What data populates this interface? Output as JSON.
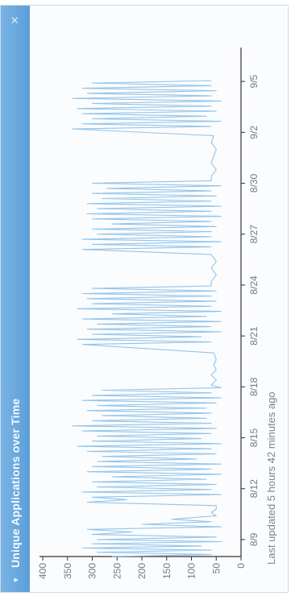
{
  "widget": {
    "title": "Unique Applications over Time",
    "collapse_icon": "chevron-down-icon",
    "close_icon": "close-icon",
    "footer": "Last updated 5 hours 42 minutes ago"
  },
  "colors": {
    "header": "#5b9fd9",
    "series": "#8cc1e8",
    "axis": "#333333",
    "tick_text": "#6f7a86"
  },
  "chart_data": {
    "type": "line",
    "title": "Unique Applications over Time",
    "xlabel": "",
    "ylabel": "",
    "grid": false,
    "ylim": [
      0,
      400
    ],
    "y_ticks": [
      0,
      50,
      100,
      150,
      200,
      250,
      300,
      350,
      400
    ],
    "x_tick_labels": [
      "8/9",
      "8/12",
      "8/15",
      "8/18",
      "8/21",
      "8/24",
      "8/27",
      "8/30",
      "9/2",
      "9/5"
    ],
    "x_range_days": [
      "8/8",
      "9/7"
    ],
    "series": [
      {
        "values": [
          [
            0,
            260
          ],
          [
            0.12,
            60
          ],
          [
            0.25,
            290
          ],
          [
            0.38,
            60
          ],
          [
            0.5,
            320
          ],
          [
            0.62,
            80
          ],
          [
            0.75,
            300
          ],
          [
            0.88,
            40
          ],
          [
            1.0,
            290
          ],
          [
            1.15,
            50
          ],
          [
            1.3,
            300
          ],
          [
            1.45,
            220
          ],
          [
            1.6,
            310
          ],
          [
            1.75,
            40
          ],
          [
            1.9,
            200
          ],
          [
            2.05,
            60
          ],
          [
            2.2,
            140
          ],
          [
            2.4,
            50
          ],
          [
            2.6,
            60
          ],
          [
            2.8,
            50
          ],
          [
            3.0,
            50
          ],
          [
            3.2,
            310
          ],
          [
            3.35,
            230
          ],
          [
            3.5,
            300
          ],
          [
            3.65,
            40
          ],
          [
            3.8,
            320
          ],
          [
            3.95,
            60
          ],
          [
            4.1,
            290
          ],
          [
            4.25,
            50
          ],
          [
            4.4,
            300
          ],
          [
            4.55,
            70
          ],
          [
            4.7,
            260
          ],
          [
            4.85,
            40
          ],
          [
            5.0,
            310
          ],
          [
            5.15,
            60
          ],
          [
            5.3,
            300
          ],
          [
            5.45,
            40
          ],
          [
            5.6,
            290
          ],
          [
            5.75,
            90
          ],
          [
            5.9,
            280
          ],
          [
            6.05,
            50
          ],
          [
            6.2,
            310
          ],
          [
            6.35,
            60
          ],
          [
            6.5,
            330
          ],
          [
            6.65,
            40
          ],
          [
            6.8,
            300
          ],
          [
            6.95,
            80
          ],
          [
            7.1,
            290
          ],
          [
            7.25,
            60
          ],
          [
            7.4,
            320
          ],
          [
            7.55,
            50
          ],
          [
            7.7,
            340
          ],
          [
            7.85,
            60
          ],
          [
            8.0,
            300
          ],
          [
            8.15,
            70
          ],
          [
            8.3,
            280
          ],
          [
            8.45,
            60
          ],
          [
            8.6,
            310
          ],
          [
            8.75,
            70
          ],
          [
            8.9,
            290
          ],
          [
            9.05,
            50
          ],
          [
            9.2,
            320
          ],
          [
            9.35,
            40
          ],
          [
            9.5,
            300
          ],
          [
            9.65,
            60
          ],
          [
            9.8,
            280
          ],
          [
            9.95,
            40
          ],
          [
            10.1,
            60
          ],
          [
            10.4,
            50
          ],
          [
            10.7,
            60
          ],
          [
            11.0,
            50
          ],
          [
            11.3,
            55
          ],
          [
            11.6,
            50
          ],
          [
            12.0,
            55
          ],
          [
            12.5,
            320
          ],
          [
            12.65,
            60
          ],
          [
            12.8,
            330
          ],
          [
            12.95,
            80
          ],
          [
            13.1,
            300
          ],
          [
            13.25,
            40
          ],
          [
            13.4,
            310
          ],
          [
            13.55,
            60
          ],
          [
            13.7,
            290
          ],
          [
            13.85,
            40
          ],
          [
            14.0,
            320
          ],
          [
            14.15,
            70
          ],
          [
            14.3,
            260
          ],
          [
            14.45,
            40
          ],
          [
            14.6,
            330
          ],
          [
            14.75,
            60
          ],
          [
            14.9,
            300
          ],
          [
            15.05,
            50
          ],
          [
            15.2,
            310
          ],
          [
            15.35,
            60
          ],
          [
            15.5,
            320
          ],
          [
            15.65,
            50
          ],
          [
            15.8,
            300
          ],
          [
            15.95,
            60
          ],
          [
            16.2,
            60
          ],
          [
            16.6,
            50
          ],
          [
            17.0,
            60
          ],
          [
            17.4,
            50
          ],
          [
            17.8,
            60
          ],
          [
            18.1,
            320
          ],
          [
            18.25,
            60
          ],
          [
            18.4,
            300
          ],
          [
            18.55,
            40
          ],
          [
            18.7,
            320
          ],
          [
            18.85,
            60
          ],
          [
            19.0,
            290
          ],
          [
            19.15,
            60
          ],
          [
            19.3,
            300
          ],
          [
            19.45,
            50
          ],
          [
            19.6,
            260
          ],
          [
            19.75,
            60
          ],
          [
            19.9,
            300
          ],
          [
            20.05,
            40
          ],
          [
            20.2,
            310
          ],
          [
            20.35,
            60
          ],
          [
            20.5,
            290
          ],
          [
            20.65,
            40
          ],
          [
            20.8,
            310
          ],
          [
            20.95,
            60
          ],
          [
            21.1,
            280
          ],
          [
            21.25,
            50
          ],
          [
            21.4,
            300
          ],
          [
            21.55,
            60
          ],
          [
            21.7,
            270
          ],
          [
            21.85,
            40
          ],
          [
            22.0,
            300
          ],
          [
            22.15,
            60
          ],
          [
            22.4,
            60
          ],
          [
            22.8,
            50
          ],
          [
            23.2,
            60
          ],
          [
            23.6,
            55
          ],
          [
            24.0,
            50
          ],
          [
            24.4,
            60
          ],
          [
            24.8,
            55
          ],
          [
            25.2,
            340
          ],
          [
            25.35,
            60
          ],
          [
            25.5,
            320
          ],
          [
            25.65,
            40
          ],
          [
            25.8,
            300
          ],
          [
            25.95,
            70
          ],
          [
            26.1,
            320
          ],
          [
            26.25,
            50
          ],
          [
            26.4,
            330
          ],
          [
            26.55,
            60
          ],
          [
            26.7,
            300
          ],
          [
            26.85,
            40
          ],
          [
            27.0,
            340
          ],
          [
            27.15,
            60
          ],
          [
            27.3,
            310
          ],
          [
            27.45,
            50
          ],
          [
            27.6,
            320
          ],
          [
            27.75,
            60
          ],
          [
            27.9,
            300
          ],
          [
            28.05,
            60
          ]
        ]
      }
    ]
  }
}
